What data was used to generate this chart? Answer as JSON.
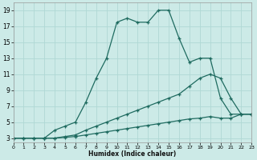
{
  "xlabel": "Humidex (Indice chaleur)",
  "bg_color": "#cceae7",
  "grid_color": "#b0d8d4",
  "line_color": "#1f6b60",
  "series": [
    {
      "x": [
        0,
        1,
        2,
        3,
        4,
        5,
        6,
        7,
        8,
        9,
        10,
        11,
        12,
        13,
        14,
        15,
        16,
        17,
        18,
        19,
        20,
        21,
        22,
        23
      ],
      "y": [
        3,
        3,
        3,
        3,
        4,
        4.5,
        5,
        7.5,
        10.5,
        13,
        17.5,
        18,
        17.5,
        17.5,
        19,
        19,
        15.5,
        12.5,
        13,
        13,
        8,
        6,
        6,
        6
      ]
    },
    {
      "x": [
        0,
        1,
        2,
        3,
        4,
        5,
        6,
        7,
        8,
        9,
        10,
        11,
        12,
        13,
        14,
        15,
        16,
        17,
        18,
        19,
        20,
        21,
        22,
        23
      ],
      "y": [
        3,
        3,
        3,
        3,
        3,
        3.2,
        3.4,
        4,
        4.5,
        5,
        5.5,
        6,
        6.5,
        7,
        7.5,
        8,
        8.5,
        9.5,
        10.5,
        11,
        10.5,
        8,
        6,
        6
      ]
    },
    {
      "x": [
        0,
        1,
        2,
        3,
        4,
        5,
        6,
        7,
        8,
        9,
        10,
        11,
        12,
        13,
        14,
        15,
        16,
        17,
        18,
        19,
        20,
        21,
        22,
        23
      ],
      "y": [
        3,
        3,
        3,
        3,
        3,
        3.1,
        3.2,
        3.4,
        3.6,
        3.8,
        4.0,
        4.2,
        4.4,
        4.6,
        4.8,
        5.0,
        5.2,
        5.4,
        5.5,
        5.7,
        5.5,
        5.5,
        6,
        6
      ]
    }
  ],
  "xlim": [
    0,
    23
  ],
  "ylim": [
    2.5,
    20
  ],
  "yticks": [
    3,
    5,
    7,
    9,
    11,
    13,
    15,
    17,
    19
  ],
  "xticks": [
    0,
    1,
    2,
    3,
    4,
    5,
    6,
    7,
    8,
    9,
    10,
    11,
    12,
    13,
    14,
    15,
    16,
    17,
    18,
    19,
    20,
    21,
    22,
    23
  ]
}
